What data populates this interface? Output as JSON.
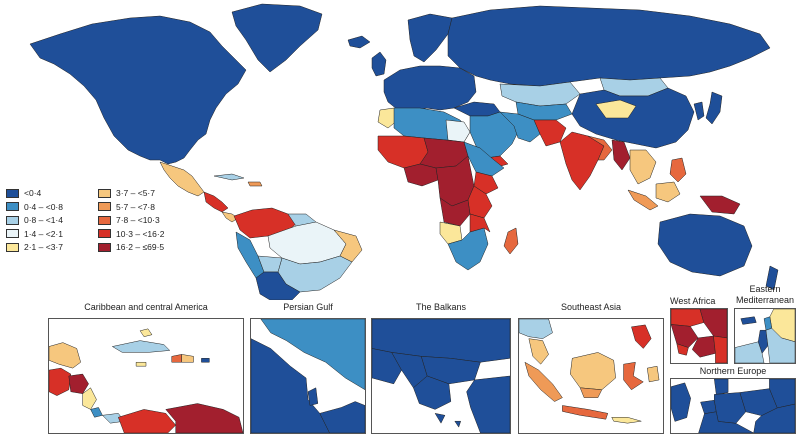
{
  "colors": {
    "c0": "#1f4f99",
    "c1": "#3d8fc4",
    "c2": "#a8d0e6",
    "c3": "#eaf4f8",
    "c4": "#fbe79a",
    "c5": "#f6c77e",
    "c6": "#ef9a57",
    "c7": "#e6683e",
    "c8": "#d73027",
    "c9": "#a21f2e",
    "ocean": "#ffffff",
    "border": "#222222"
  },
  "legend": {
    "items": [
      {
        "label": "<0·4",
        "color_key": "c0"
      },
      {
        "label": "0·4 – <0·8",
        "color_key": "c1"
      },
      {
        "label": "0·8 – <1·4",
        "color_key": "c2"
      },
      {
        "label": "1·4 – <2·1",
        "color_key": "c3"
      },
      {
        "label": "2·1 – <3·7",
        "color_key": "c4"
      },
      {
        "label": "3·7 – <5·7",
        "color_key": "c5"
      },
      {
        "label": "5·7 – <7·8",
        "color_key": "c6"
      },
      {
        "label": "7·8 – <10·3",
        "color_key": "c7"
      },
      {
        "label": "10·3 – <16·2",
        "color_key": "c8"
      },
      {
        "label": "16·2 – ≤69·5",
        "color_key": "c9"
      }
    ]
  },
  "insets": {
    "caribbean": {
      "title": "Caribbean and central America"
    },
    "persian_gulf": {
      "title": "Persian Gulf"
    },
    "balkans": {
      "title": "The Balkans"
    },
    "southeast_asia": {
      "title": "Southeast Asia"
    },
    "west_africa": {
      "title": "West Africa"
    },
    "eastern_med": {
      "title": "Eastern Mediterranean"
    },
    "northern_europe": {
      "title": "Northern Europe"
    }
  }
}
